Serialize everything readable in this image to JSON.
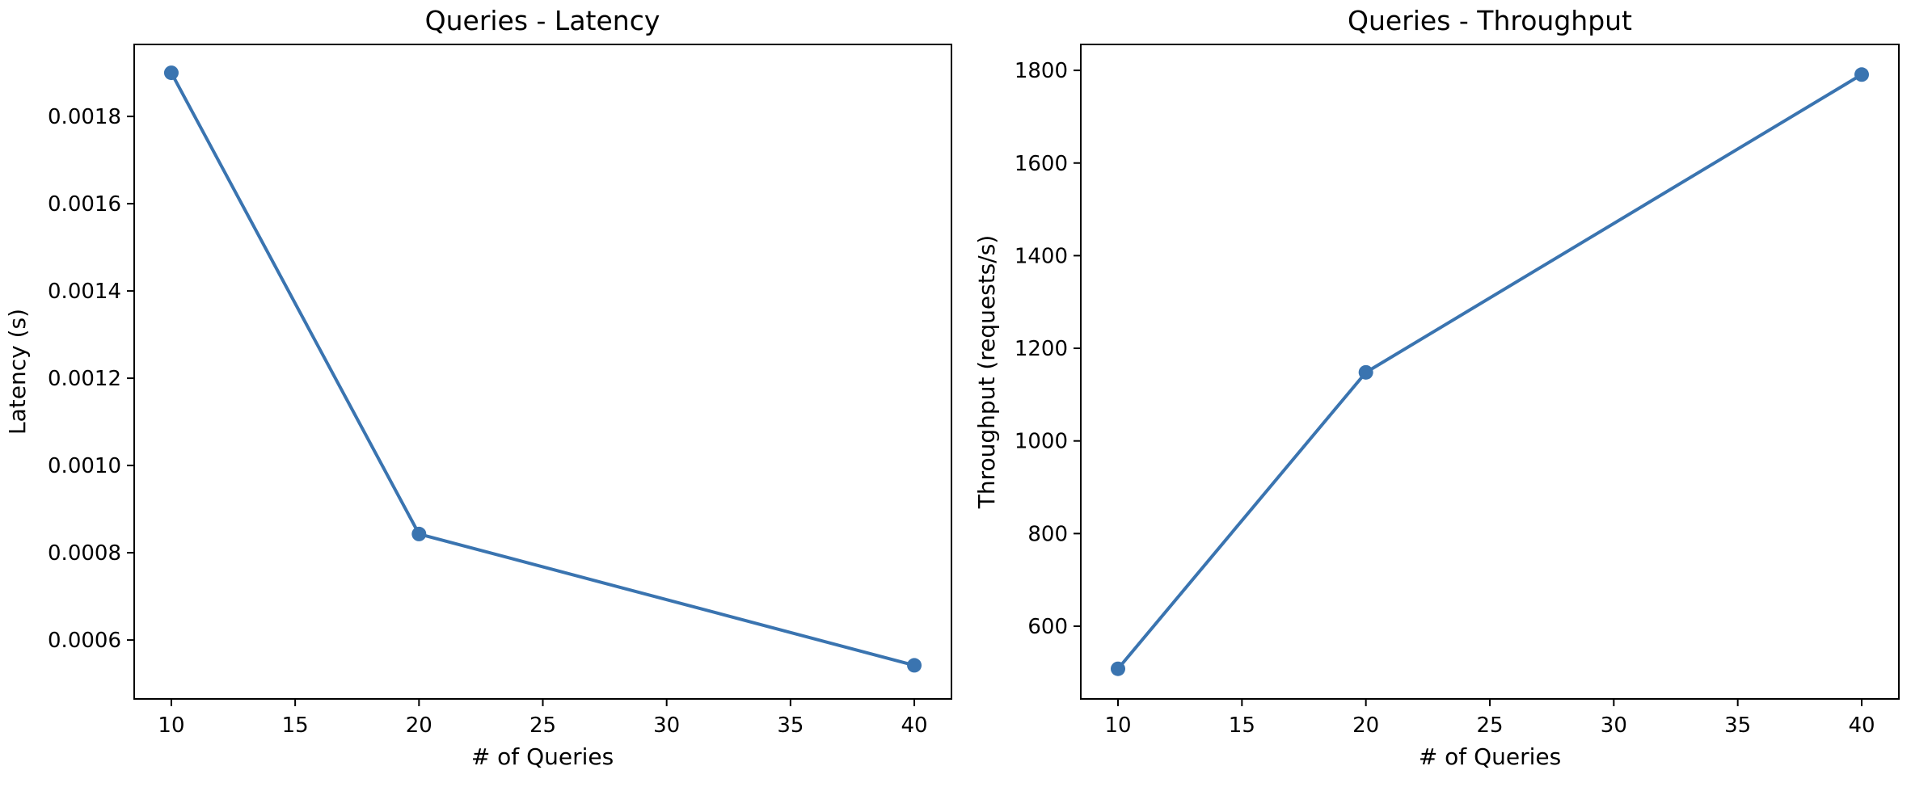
{
  "colors": {
    "series": "#3a74b0",
    "axis": "#000000",
    "background": "#ffffff"
  },
  "chart_data": [
    {
      "type": "line",
      "title": "Queries - Latency",
      "xlabel": "# of Queries",
      "ylabel": "Latency (s)",
      "x": [
        10,
        20,
        40
      ],
      "series": [
        {
          "values": [
            0.0019,
            0.000843,
            0.000542
          ]
        }
      ],
      "xlim": [
        8.5,
        41.5
      ],
      "ylim": [
        0.000465,
        0.001965
      ],
      "xticks": [
        10,
        15,
        20,
        25,
        30,
        35,
        40
      ],
      "xtick_labels": [
        "10",
        "15",
        "20",
        "25",
        "30",
        "35",
        "40"
      ],
      "yticks": [
        0.0006,
        0.0008,
        0.001,
        0.0012,
        0.0014,
        0.0016,
        0.0018
      ],
      "ytick_labels": [
        "0.0006",
        "0.0008",
        "0.0010",
        "0.0012",
        "0.0014",
        "0.0016",
        "0.0018"
      ],
      "grid": false,
      "markers": "circle"
    },
    {
      "type": "line",
      "title": "Queries - Throughput",
      "xlabel": "# of Queries",
      "ylabel": "Throughput (requests/s)",
      "x": [
        10,
        20,
        40
      ],
      "series": [
        {
          "values": [
            508,
            1148,
            1791
          ]
        }
      ],
      "xlim": [
        8.5,
        41.5
      ],
      "ylim": [
        443,
        1856
      ],
      "xticks": [
        10,
        15,
        20,
        25,
        30,
        35,
        40
      ],
      "xtick_labels": [
        "10",
        "15",
        "20",
        "25",
        "30",
        "35",
        "40"
      ],
      "yticks": [
        600,
        800,
        1000,
        1200,
        1400,
        1600,
        1800
      ],
      "ytick_labels": [
        "600",
        "800",
        "1000",
        "1200",
        "1400",
        "1600",
        "1800"
      ],
      "grid": false,
      "markers": "circle"
    }
  ]
}
